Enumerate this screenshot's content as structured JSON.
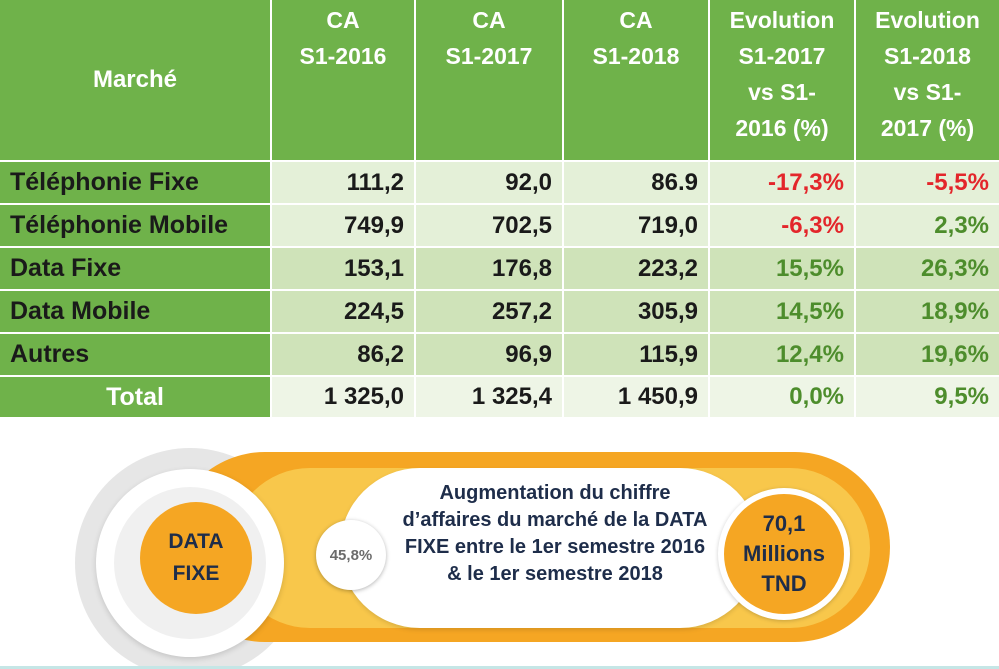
{
  "table": {
    "headers": {
      "marche": "Marché",
      "ca2016": [
        "CA",
        "S1-2016"
      ],
      "ca2017": [
        "CA",
        "S1-2017"
      ],
      "ca2018": [
        "CA",
        "S1-2018"
      ],
      "evo1": [
        "Evolution",
        "S1-2017",
        "vs S1-",
        "2016 (%)"
      ],
      "evo2": [
        "Evolution",
        "S1-2018",
        "vs S1-",
        "2017 (%)"
      ]
    },
    "rows": [
      {
        "label": "Téléphonie Fixe",
        "ca2016": "111,2",
        "ca2017": "92,0",
        "ca2018": "86.9",
        "evo1": "-17,3%",
        "evo2": "-5,5%"
      },
      {
        "label": "Téléphonie Mobile",
        "ca2016": "749,9",
        "ca2017": "702,5",
        "ca2018": "719,0",
        "evo1": "-6,3%",
        "evo2": "2,3%"
      },
      {
        "label": "Data Fixe",
        "ca2016": "153,1",
        "ca2017": "176,8",
        "ca2018": "223,2",
        "evo1": "15,5%",
        "evo2": "26,3%"
      },
      {
        "label": "Data Mobile",
        "ca2016": "224,5",
        "ca2017": "257,2",
        "ca2018": "305,9",
        "evo1": "14,5%",
        "evo2": "18,9%"
      },
      {
        "label": "Autres",
        "ca2016": "86,2",
        "ca2017": "96,9",
        "ca2018": "115,9",
        "evo1": "12,4%",
        "evo2": "19,6%"
      }
    ],
    "total": {
      "label": "Total",
      "ca2016": "1 325,0",
      "ca2017": "1 325,4",
      "ca2018": "1 450,9",
      "evo1": "0,0%",
      "evo2": "9,5%"
    }
  },
  "banner": {
    "segment": [
      "DATA",
      "FIXE"
    ],
    "percent": "45,8%",
    "description": [
      "Augmentation du chiffre",
      "d’affaires du marché de la DATA",
      "FIXE  entre le 1er semestre 2016",
      "& le 1er semestre 2018"
    ],
    "value": [
      "70,1",
      "Millions",
      "TND"
    ]
  },
  "colors": {
    "header_green": "#6fb24a",
    "negative_red": "#e3262b",
    "positive_green": "#4d8d2c",
    "accent_orange": "#f5a623"
  }
}
